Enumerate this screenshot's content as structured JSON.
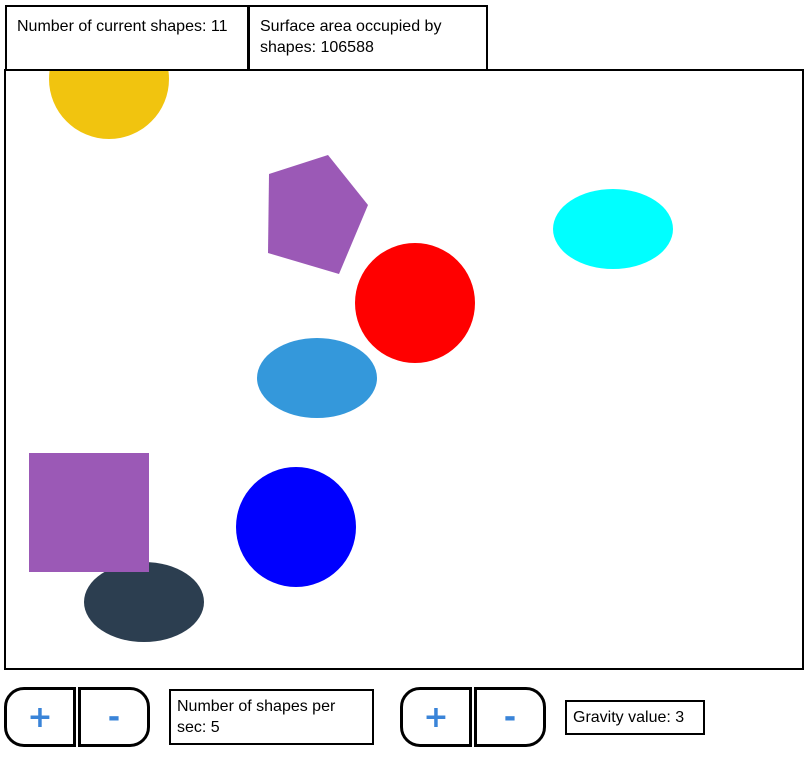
{
  "header": {
    "shapes_count_text": "Number of current shapes: 11",
    "surface_area_text": "Surface area occupied by shapes: 106588"
  },
  "controls": {
    "shapes_plus_label": "+",
    "shapes_minus_label": "-",
    "shapes_per_sec_text": "Number of shapes per sec: 5",
    "gravity_plus_label": "+",
    "gravity_minus_label": "-",
    "gravity_text": "Gravity value: 3"
  },
  "shapes": [
    {
      "kind": "circle",
      "color": "#f1c40f",
      "name": "yellow-circle"
    },
    {
      "kind": "pentagon",
      "color": "#9b59b6",
      "name": "purple-pentagon"
    },
    {
      "kind": "ellipse",
      "color": "#00ffff",
      "name": "cyan-ellipse"
    },
    {
      "kind": "circle",
      "color": "#ff0000",
      "name": "red-circle"
    },
    {
      "kind": "ellipse",
      "color": "#3498db",
      "name": "blue-ellipse"
    },
    {
      "kind": "square",
      "color": "#9b59b6",
      "name": "purple-square"
    },
    {
      "kind": "ellipse",
      "color": "#2c3e50",
      "name": "dark-ellipse"
    },
    {
      "kind": "circle",
      "color": "#0000ff",
      "name": "blue-circle"
    }
  ]
}
